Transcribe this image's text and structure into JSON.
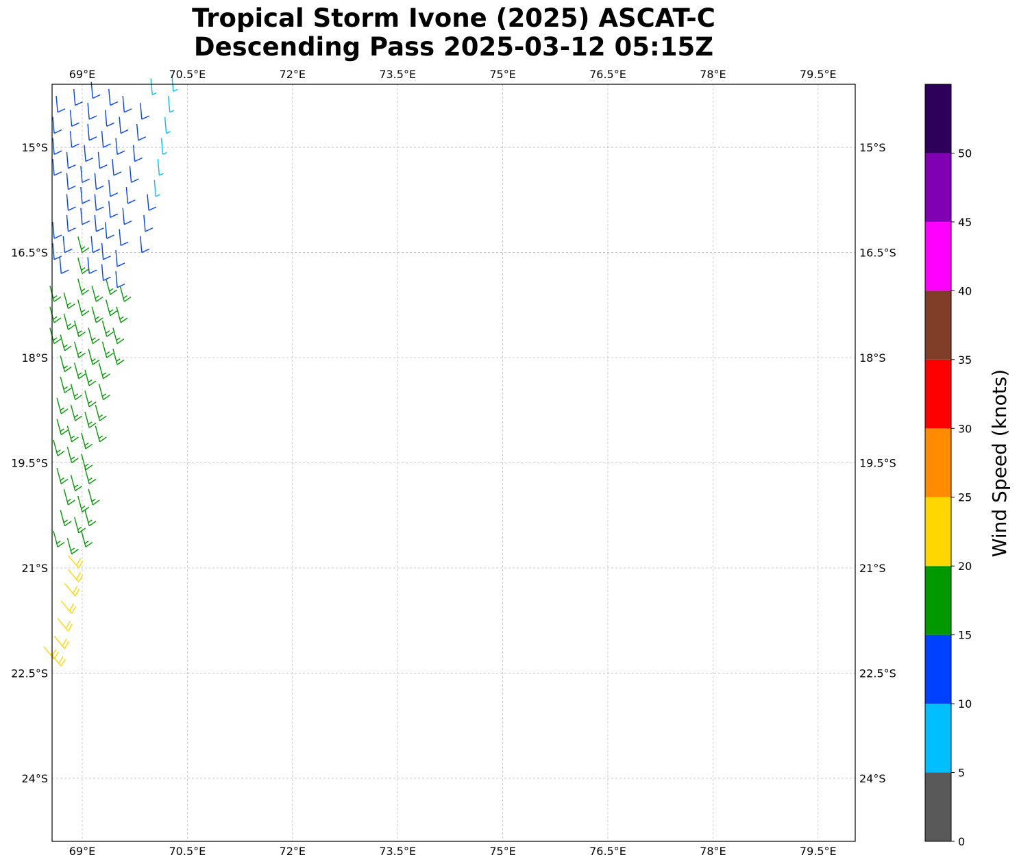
{
  "title": {
    "line1": "Tropical Storm Ivone (2025) ASCAT-C",
    "line2": "Descending Pass 2025-03-12 05:15Z"
  },
  "map": {
    "lon_labels": [
      "69°E",
      "70.5°E",
      "72°E",
      "73.5°E",
      "75°E",
      "76.5°E",
      "78°E",
      "79.5°E"
    ],
    "lon_values": [
      69,
      70.5,
      72,
      73.5,
      75,
      76.5,
      78,
      79.5
    ],
    "lat_labels": [
      "15°S",
      "16.5°S",
      "18°S",
      "19.5°S",
      "21°S",
      "22.5°S",
      "24°S"
    ],
    "lat_values": [
      -15,
      -16.5,
      -18,
      -19.5,
      -21,
      -22.5,
      -24
    ],
    "extent": {
      "lon_min": 68.57,
      "lon_max": 80.03,
      "lat_max": -14.1,
      "lat_min": -24.9
    },
    "grid": true
  },
  "colorbar": {
    "label": "Wind Speed (knots)",
    "ticks": [
      "0",
      "5",
      "10",
      "15",
      "20",
      "25",
      "30",
      "35",
      "40",
      "45",
      "50"
    ],
    "range": [
      0,
      55
    ],
    "colors": [
      "#595959",
      "#00bfff",
      "#0040ff",
      "#009900",
      "#ffd700",
      "#ff8c00",
      "#ff0000",
      "#803e29",
      "#ff00ff",
      "#8000b3",
      "#2e0059"
    ]
  },
  "chart_data": {
    "type": "scatter",
    "description_note": "",
    "series": [
      {
        "speed_kt": 7,
        "points": [
          [
            70.3,
            -14.2
          ],
          [
            70.25,
            -14.5
          ],
          [
            70.2,
            -14.8
          ],
          [
            70.15,
            -15.1
          ],
          [
            70.1,
            -15.4
          ],
          [
            70.0,
            -14.25
          ],
          [
            70.05,
            -15.7
          ]
        ]
      },
      {
        "speed_kt": 12,
        "points": [
          [
            68.65,
            -14.5
          ],
          [
            68.6,
            -14.8
          ],
          [
            68.6,
            -15.1
          ],
          [
            68.6,
            -15.4
          ],
          [
            68.55,
            -15.7
          ],
          [
            68.55,
            -16.0
          ],
          [
            68.6,
            -16.3
          ],
          [
            68.6,
            -16.6
          ],
          [
            68.55,
            -16.9
          ],
          [
            68.9,
            -14.4
          ],
          [
            68.85,
            -14.7
          ],
          [
            68.85,
            -15.0
          ],
          [
            68.8,
            -15.3
          ],
          [
            68.8,
            -15.6
          ],
          [
            68.8,
            -15.9
          ],
          [
            68.8,
            -16.2
          ],
          [
            68.75,
            -16.5
          ],
          [
            68.7,
            -16.8
          ],
          [
            69.15,
            -14.3
          ],
          [
            69.1,
            -14.6
          ],
          [
            69.1,
            -14.9
          ],
          [
            69.05,
            -15.2
          ],
          [
            69.0,
            -15.5
          ],
          [
            69.0,
            -15.8
          ],
          [
            69.0,
            -16.1
          ],
          [
            69.4,
            -14.4
          ],
          [
            69.35,
            -14.7
          ],
          [
            69.3,
            -15.0
          ],
          [
            69.25,
            -15.3
          ],
          [
            69.2,
            -15.6
          ],
          [
            69.2,
            -15.9
          ],
          [
            69.2,
            -16.2
          ],
          [
            69.15,
            -16.5
          ],
          [
            69.1,
            -16.8
          ],
          [
            69.6,
            -14.5
          ],
          [
            69.55,
            -14.8
          ],
          [
            69.5,
            -15.1
          ],
          [
            69.45,
            -15.4
          ],
          [
            69.4,
            -15.7
          ],
          [
            69.4,
            -16.0
          ],
          [
            69.35,
            -16.3
          ],
          [
            69.3,
            -16.6
          ],
          [
            69.3,
            -16.9
          ],
          [
            69.85,
            -14.6
          ],
          [
            69.8,
            -14.9
          ],
          [
            69.75,
            -15.2
          ],
          [
            69.7,
            -15.5
          ],
          [
            69.65,
            -15.8
          ],
          [
            69.6,
            -16.1
          ],
          [
            69.55,
            -16.4
          ],
          [
            69.5,
            -16.7
          ],
          [
            69.5,
            -17.0
          ],
          [
            69.95,
            -15.9
          ],
          [
            69.9,
            -16.2
          ],
          [
            69.85,
            -16.5
          ]
        ]
      },
      {
        "speed_kt": 17,
        "points": [
          [
            68.6,
            -17.2
          ],
          [
            68.6,
            -17.5
          ],
          [
            68.6,
            -17.8
          ],
          [
            68.55,
            -18.1
          ],
          [
            68.5,
            -18.4
          ],
          [
            68.8,
            -17.3
          ],
          [
            68.8,
            -17.6
          ],
          [
            68.75,
            -17.9
          ],
          [
            68.75,
            -18.2
          ],
          [
            68.75,
            -18.5
          ],
          [
            68.7,
            -18.8
          ],
          [
            68.7,
            -19.1
          ],
          [
            68.65,
            -19.4
          ],
          [
            69.0,
            -16.5
          ],
          [
            69.0,
            -16.8
          ],
          [
            69.0,
            -17.1
          ],
          [
            69.0,
            -17.4
          ],
          [
            68.95,
            -17.7
          ],
          [
            68.95,
            -18.0
          ],
          [
            68.95,
            -18.3
          ],
          [
            68.9,
            -18.6
          ],
          [
            68.9,
            -18.9
          ],
          [
            68.85,
            -19.2
          ],
          [
            68.85,
            -19.5
          ],
          [
            69.2,
            -17.2
          ],
          [
            69.2,
            -17.5
          ],
          [
            69.15,
            -17.8
          ],
          [
            69.15,
            -18.1
          ],
          [
            69.1,
            -18.4
          ],
          [
            69.1,
            -18.7
          ],
          [
            69.1,
            -19.0
          ],
          [
            69.05,
            -19.3
          ],
          [
            69.05,
            -19.6
          ],
          [
            69.4,
            -17.1
          ],
          [
            69.4,
            -17.4
          ],
          [
            69.35,
            -17.7
          ],
          [
            69.35,
            -18.0
          ],
          [
            69.3,
            -18.3
          ],
          [
            69.3,
            -18.6
          ],
          [
            69.25,
            -18.9
          ],
          [
            69.25,
            -19.2
          ],
          [
            69.6,
            -17.2
          ],
          [
            69.55,
            -17.5
          ],
          [
            69.5,
            -17.8
          ],
          [
            69.5,
            -18.1
          ],
          [
            68.7,
            -19.8
          ],
          [
            68.8,
            -20.1
          ],
          [
            68.75,
            -20.4
          ],
          [
            68.65,
            -20.7
          ],
          [
            68.9,
            -19.9
          ],
          [
            69.0,
            -20.2
          ],
          [
            68.95,
            -20.5
          ],
          [
            68.85,
            -20.8
          ],
          [
            69.1,
            -19.8
          ],
          [
            69.15,
            -20.1
          ],
          [
            69.1,
            -20.4
          ],
          [
            69.05,
            -20.7
          ]
        ]
      },
      {
        "speed_kt": 22,
        "points": [
          [
            68.95,
            -21.0
          ],
          [
            68.95,
            -21.2
          ],
          [
            68.9,
            -21.4
          ],
          [
            68.85,
            -21.65
          ],
          [
            68.8,
            -21.9
          ],
          [
            68.75,
            -22.15
          ],
          [
            68.7,
            -22.4
          ],
          [
            68.6,
            -22.3
          ]
        ]
      }
    ]
  }
}
